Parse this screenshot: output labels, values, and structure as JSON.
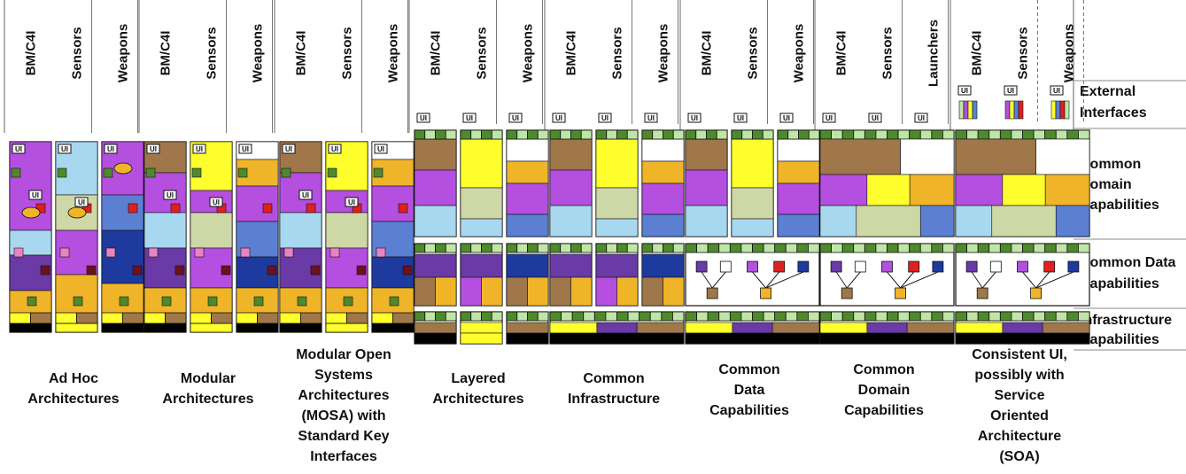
{
  "columns": [
    "BM/C4I",
    "Sensors",
    "Weapons",
    "Launchers"
  ],
  "ui_label": "UI",
  "layer_labels": [
    [
      "External",
      "Interfaces"
    ],
    [
      "Common",
      "Domain",
      "Capabilities"
    ],
    [
      "Common Data",
      "Capabilities"
    ],
    [
      "Infrastructure",
      "Capabilities"
    ]
  ],
  "groups": [
    {
      "caption": [
        "Ad Hoc",
        "Architectures"
      ],
      "columns": [
        "BM/C4I",
        "Sensors",
        "Weapons"
      ]
    },
    {
      "caption": [
        "Modular",
        "Architectures"
      ],
      "columns": [
        "BM/C4I",
        "Sensors",
        "Weapons"
      ]
    },
    {
      "caption": [
        "Modular Open",
        "Systems",
        "Architectures",
        "(MOSA) with",
        "Standard Key",
        "Interfaces"
      ],
      "columns": [
        "BM/C4I",
        "Sensors",
        "Weapons"
      ]
    },
    {
      "caption": [
        "Layered",
        "Architectures"
      ],
      "columns": [
        "BM/C4I",
        "Sensors",
        "Weapons"
      ]
    },
    {
      "caption": [
        "Common",
        "Infrastructure"
      ],
      "columns": [
        "BM/C4I",
        "Sensors",
        "Weapons"
      ]
    },
    {
      "caption": [
        "Common",
        "Data",
        "Capabilities"
      ],
      "columns": [
        "BM/C4I",
        "Sensors",
        "Weapons"
      ]
    },
    {
      "caption": [
        "Common",
        "Domain",
        "Capabilities"
      ],
      "columns": [
        "BM/C4I",
        "Sensors",
        "Launchers"
      ]
    },
    {
      "caption": [
        "Consistent UI,",
        "possibly with",
        "Service",
        "Oriented",
        "Architecture",
        "(SOA)"
      ],
      "columns": [
        "BM/C4I",
        "Sensors",
        "Weapons"
      ]
    }
  ],
  "colors": {
    "brown": "#a0774a",
    "purple": "#b44fe0",
    "darkpurple": "#6a3aa6",
    "lightblue": "#a8d8f0",
    "yellow": "#ffff2e",
    "orange": "#f0b429",
    "sage": "#cdd8a6",
    "blue": "#5b80d2",
    "navy": "#1e3a9e",
    "green": "#4e8a2c",
    "lightgreen": "#bfe6a6",
    "black": "#000000",
    "red": "#e02020",
    "pink": "#e884c4",
    "maroon": "#6e1020"
  }
}
